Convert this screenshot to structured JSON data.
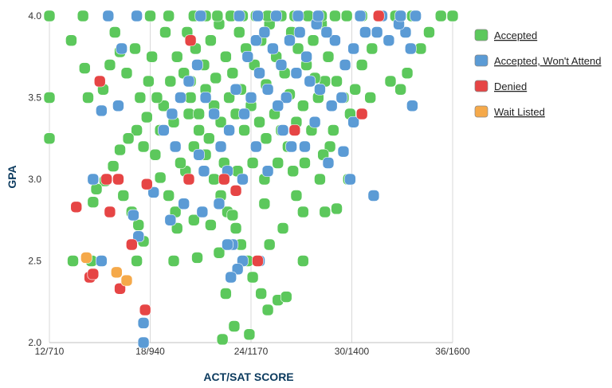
{
  "chart_data": {
    "type": "scatter",
    "title": "",
    "xlabel": "ACT/SAT SCORE",
    "ylabel": "GPA",
    "x_ticks": [
      {
        "value": 12,
        "label": "12/710"
      },
      {
        "value": 18,
        "label": "18/940"
      },
      {
        "value": 24,
        "label": "24/1170"
      },
      {
        "value": 30,
        "label": "30/1400"
      },
      {
        "value": 36,
        "label": "36/1600"
      }
    ],
    "y_ticks": [
      {
        "value": 2.0,
        "label": "2.0"
      },
      {
        "value": 2.5,
        "label": "2.5"
      },
      {
        "value": 3.0,
        "label": "3.0"
      },
      {
        "value": 3.5,
        "label": "3.5"
      },
      {
        "value": 4.0,
        "label": "4.0"
      }
    ],
    "xlim": [
      12,
      36
    ],
    "ylim": [
      2.0,
      4.0
    ],
    "grid": "vertical",
    "legend_position": "right",
    "series": [
      {
        "name": "Accepted",
        "color": "#5cc85c",
        "points": [
          [
            12,
            4.0
          ],
          [
            14,
            4.0
          ],
          [
            18,
            4.0
          ],
          [
            12,
            3.5
          ],
          [
            12,
            3.25
          ],
          [
            13.3,
            3.85
          ],
          [
            14.1,
            3.68
          ],
          [
            14.3,
            3.5
          ],
          [
            15.2,
            3.55
          ],
          [
            15.6,
            3.7
          ],
          [
            15.9,
            3.9
          ],
          [
            16.2,
            3.78
          ],
          [
            16.6,
            3.65
          ],
          [
            17.1,
            3.8
          ],
          [
            17.4,
            3.5
          ],
          [
            17.2,
            3.3
          ],
          [
            16.7,
            3.25
          ],
          [
            16.2,
            3.18
          ],
          [
            15.8,
            3.08
          ],
          [
            15.3,
            2.99
          ],
          [
            14.8,
            2.94
          ],
          [
            14.6,
            2.86
          ],
          [
            16.4,
            2.9
          ],
          [
            16.9,
            2.8
          ],
          [
            17.3,
            2.72
          ],
          [
            17.6,
            2.62
          ],
          [
            18.2,
            2.92
          ],
          [
            18.6,
            3.01
          ],
          [
            19.1,
            2.9
          ],
          [
            19.5,
            2.8
          ],
          [
            20.1,
            3.05
          ],
          [
            20.3,
            3.4
          ],
          [
            20.4,
            3.6
          ],
          [
            20.9,
            3.3
          ],
          [
            21.3,
            3.15
          ],
          [
            21.8,
            3.0
          ],
          [
            22.2,
            2.9
          ],
          [
            22.6,
            2.8
          ],
          [
            23.1,
            2.7
          ],
          [
            23.4,
            2.6
          ],
          [
            23.8,
            2.5
          ],
          [
            24.1,
            2.4
          ],
          [
            24.6,
            2.3
          ],
          [
            25.0,
            2.2
          ],
          [
            25.6,
            2.26
          ],
          [
            26.1,
            2.28
          ],
          [
            27.1,
            2.5
          ],
          [
            13.4,
            2.5
          ],
          [
            14.5,
            2.5
          ],
          [
            17.2,
            2.5
          ],
          [
            19.4,
            2.5
          ],
          [
            20.8,
            2.52
          ],
          [
            22.1,
            2.55
          ],
          [
            22.5,
            2.3
          ],
          [
            23.0,
            2.1
          ],
          [
            23.9,
            2.05
          ],
          [
            22.3,
            2.02
          ],
          [
            19.6,
            2.7
          ],
          [
            20.6,
            2.75
          ],
          [
            21.6,
            2.72
          ],
          [
            22.9,
            2.78
          ],
          [
            25.1,
            2.6
          ],
          [
            25.9,
            2.7
          ],
          [
            24.8,
            2.85
          ],
          [
            26.7,
            2.9
          ],
          [
            27.1,
            2.8
          ],
          [
            28.4,
            2.8
          ],
          [
            29.1,
            2.82
          ],
          [
            28.1,
            3.0
          ],
          [
            29.8,
            3.0
          ],
          [
            31.1,
            3.5
          ],
          [
            32.3,
            3.6
          ],
          [
            32.9,
            3.55
          ],
          [
            33.3,
            3.65
          ],
          [
            34.1,
            3.8
          ],
          [
            34.6,
            3.9
          ],
          [
            35.3,
            4.0
          ],
          [
            36,
            4.0
          ],
          [
            30.6,
            4.0
          ],
          [
            31.6,
            4.0
          ],
          [
            32.6,
            4.0
          ],
          [
            33.6,
            4.0
          ],
          [
            20.2,
            3.9
          ],
          [
            20.7,
            3.8
          ],
          [
            21.2,
            3.7
          ],
          [
            21.6,
            3.85
          ],
          [
            22.1,
            3.95
          ],
          [
            22.5,
            3.75
          ],
          [
            22.9,
            3.65
          ],
          [
            23.3,
            3.9
          ],
          [
            23.7,
            3.8
          ],
          [
            24.2,
            3.7
          ],
          [
            24.6,
            3.85
          ],
          [
            25.1,
            3.95
          ],
          [
            25.5,
            3.75
          ],
          [
            26.0,
            3.65
          ],
          [
            26.4,
            3.9
          ],
          [
            26.8,
            3.8
          ],
          [
            27.3,
            3.7
          ],
          [
            27.7,
            3.85
          ],
          [
            28.2,
            3.95
          ],
          [
            28.6,
            3.75
          ],
          [
            29.1,
            3.6
          ],
          [
            29.5,
            3.5
          ],
          [
            29.9,
            3.4
          ],
          [
            20.4,
            3.5
          ],
          [
            20.9,
            3.4
          ],
          [
            21.3,
            3.55
          ],
          [
            21.8,
            3.45
          ],
          [
            22.2,
            3.35
          ],
          [
            22.7,
            3.5
          ],
          [
            23.1,
            3.4
          ],
          [
            23.6,
            3.3
          ],
          [
            24.0,
            3.45
          ],
          [
            24.5,
            3.35
          ],
          [
            24.9,
            3.25
          ],
          [
            25.4,
            3.4
          ],
          [
            25.8,
            3.3
          ],
          [
            26.2,
            3.2
          ],
          [
            26.7,
            3.35
          ],
          [
            27.1,
            3.45
          ],
          [
            27.6,
            3.3
          ],
          [
            28.0,
            3.5
          ],
          [
            28.4,
            3.6
          ],
          [
            28.9,
            3.3
          ],
          [
            19.6,
            3.75
          ],
          [
            19.2,
            3.6
          ],
          [
            18.8,
            3.45
          ],
          [
            18.6,
            3.3
          ],
          [
            18.3,
            3.15
          ],
          [
            19.8,
            3.1
          ],
          [
            20.6,
            3.2
          ],
          [
            21.5,
            3.25
          ],
          [
            22.4,
            3.1
          ],
          [
            23.2,
            3.05
          ],
          [
            24.1,
            3.1
          ],
          [
            24.8,
            3.0
          ],
          [
            25.6,
            3.1
          ],
          [
            26.5,
            3.05
          ],
          [
            17.9,
            3.6
          ],
          [
            18.1,
            3.75
          ],
          [
            18.9,
            3.9
          ],
          [
            19.1,
            4.0
          ],
          [
            20.6,
            4.0
          ],
          [
            21.3,
            4.0
          ],
          [
            22.0,
            4.0
          ],
          [
            22.8,
            4.0
          ],
          [
            23.5,
            4.0
          ],
          [
            24.3,
            4.0
          ],
          [
            25.0,
            4.0
          ],
          [
            25.8,
            4.0
          ],
          [
            26.6,
            4.0
          ],
          [
            27.4,
            4.0
          ],
          [
            28.2,
            4.0
          ],
          [
            29.0,
            4.0
          ],
          [
            29.7,
            4.0
          ],
          [
            21.9,
            3.62
          ],
          [
            23.4,
            3.55
          ],
          [
            24.9,
            3.58
          ],
          [
            26.3,
            3.52
          ],
          [
            27.8,
            3.62
          ],
          [
            28.7,
            3.2
          ],
          [
            30.2,
            3.55
          ],
          [
            30.6,
            3.7
          ],
          [
            31.2,
            3.8
          ],
          [
            28.3,
            3.15
          ],
          [
            27.2,
            3.1
          ],
          [
            18.4,
            3.5
          ],
          [
            17.8,
            3.38
          ],
          [
            17.6,
            3.2
          ],
          [
            19.4,
            3.35
          ],
          [
            20.0,
            3.65
          ]
        ]
      },
      {
        "name": "Accepted, Won't Attend",
        "color": "#5b9bd5",
        "points": [
          [
            15.5,
            4.0
          ],
          [
            17.2,
            4.0
          ],
          [
            16.3,
            3.8
          ],
          [
            16.1,
            3.45
          ],
          [
            15.1,
            3.42
          ],
          [
            14.6,
            3.0
          ],
          [
            15.1,
            2.5
          ],
          [
            17.6,
            2.0
          ],
          [
            17.6,
            2.12
          ],
          [
            17.3,
            2.65
          ],
          [
            17.0,
            2.78
          ],
          [
            18.2,
            2.92
          ],
          [
            19.2,
            2.75
          ],
          [
            20.0,
            2.85
          ],
          [
            21.1,
            2.8
          ],
          [
            22.1,
            2.85
          ],
          [
            22.9,
            2.6
          ],
          [
            23.5,
            2.5
          ],
          [
            24.5,
            2.5
          ],
          [
            23.2,
            2.45
          ],
          [
            22.8,
            2.4
          ],
          [
            22.6,
            2.6
          ],
          [
            21.2,
            3.05
          ],
          [
            22.6,
            3.05
          ],
          [
            23.5,
            3.0
          ],
          [
            25.0,
            3.05
          ],
          [
            26.4,
            3.2
          ],
          [
            27.2,
            3.2
          ],
          [
            28.6,
            3.1
          ],
          [
            29.5,
            3.17
          ],
          [
            30.1,
            3.35
          ],
          [
            31.3,
            2.9
          ],
          [
            33.6,
            3.45
          ],
          [
            33.5,
            3.8
          ],
          [
            33.2,
            3.9
          ],
          [
            32.8,
            3.95
          ],
          [
            32.2,
            3.85
          ],
          [
            31.5,
            3.9
          ],
          [
            30.8,
            3.9
          ],
          [
            30.1,
            3.8
          ],
          [
            29.6,
            3.7
          ],
          [
            29.0,
            3.85
          ],
          [
            28.5,
            3.9
          ],
          [
            27.9,
            3.95
          ],
          [
            27.3,
            3.75
          ],
          [
            26.7,
            3.65
          ],
          [
            26.1,
            3.5
          ],
          [
            25.6,
            3.45
          ],
          [
            25.0,
            3.55
          ],
          [
            24.5,
            3.65
          ],
          [
            24.0,
            3.5
          ],
          [
            23.6,
            3.4
          ],
          [
            23.1,
            3.55
          ],
          [
            22.7,
            3.3
          ],
          [
            22.2,
            3.2
          ],
          [
            21.8,
            3.4
          ],
          [
            21.3,
            3.5
          ],
          [
            20.8,
            3.7
          ],
          [
            20.3,
            3.6
          ],
          [
            19.8,
            3.5
          ],
          [
            19.3,
            3.4
          ],
          [
            18.8,
            3.3
          ],
          [
            23.8,
            3.75
          ],
          [
            24.3,
            3.85
          ],
          [
            24.8,
            3.9
          ],
          [
            25.3,
            3.8
          ],
          [
            25.8,
            3.7
          ],
          [
            26.3,
            3.85
          ],
          [
            26.9,
            3.9
          ],
          [
            27.5,
            3.6
          ],
          [
            28.1,
            3.55
          ],
          [
            28.8,
            3.45
          ],
          [
            29.4,
            3.5
          ],
          [
            30.5,
            4.0
          ],
          [
            31.8,
            4.0
          ],
          [
            32.9,
            4.0
          ],
          [
            33.8,
            4.0
          ],
          [
            28.0,
            4.0
          ],
          [
            26.8,
            4.0
          ],
          [
            25.5,
            4.0
          ],
          [
            24.4,
            4.0
          ],
          [
            23.3,
            4.0
          ],
          [
            21.0,
            4.0
          ],
          [
            19.5,
            3.2
          ],
          [
            20.9,
            3.15
          ],
          [
            24.3,
            3.2
          ],
          [
            25.9,
            3.3
          ],
          [
            27.8,
            3.35
          ],
          [
            29.9,
            3.0
          ]
        ]
      },
      {
        "name": "Denied",
        "color": "#e64545",
        "points": [
          [
            14.4,
            2.4
          ],
          [
            14.6,
            2.42
          ],
          [
            16.2,
            2.33
          ],
          [
            17.7,
            2.2
          ],
          [
            13.6,
            2.83
          ],
          [
            15.6,
            2.8
          ],
          [
            15.4,
            3.0
          ],
          [
            16.1,
            3.0
          ],
          [
            17.8,
            2.97
          ],
          [
            16.9,
            2.6
          ],
          [
            15.0,
            3.6
          ],
          [
            20.4,
            3.85
          ],
          [
            20.3,
            3.0
          ],
          [
            23.1,
            2.93
          ],
          [
            24.4,
            2.5
          ],
          [
            26.6,
            3.3
          ],
          [
            30.6,
            3.4
          ],
          [
            31.6,
            4.0
          ],
          [
            22.4,
            3.0
          ]
        ]
      },
      {
        "name": "Wait Listed",
        "color": "#f5a94a",
        "points": [
          [
            14.2,
            2.52
          ],
          [
            16.0,
            2.43
          ],
          [
            16.6,
            2.38
          ]
        ]
      }
    ]
  }
}
